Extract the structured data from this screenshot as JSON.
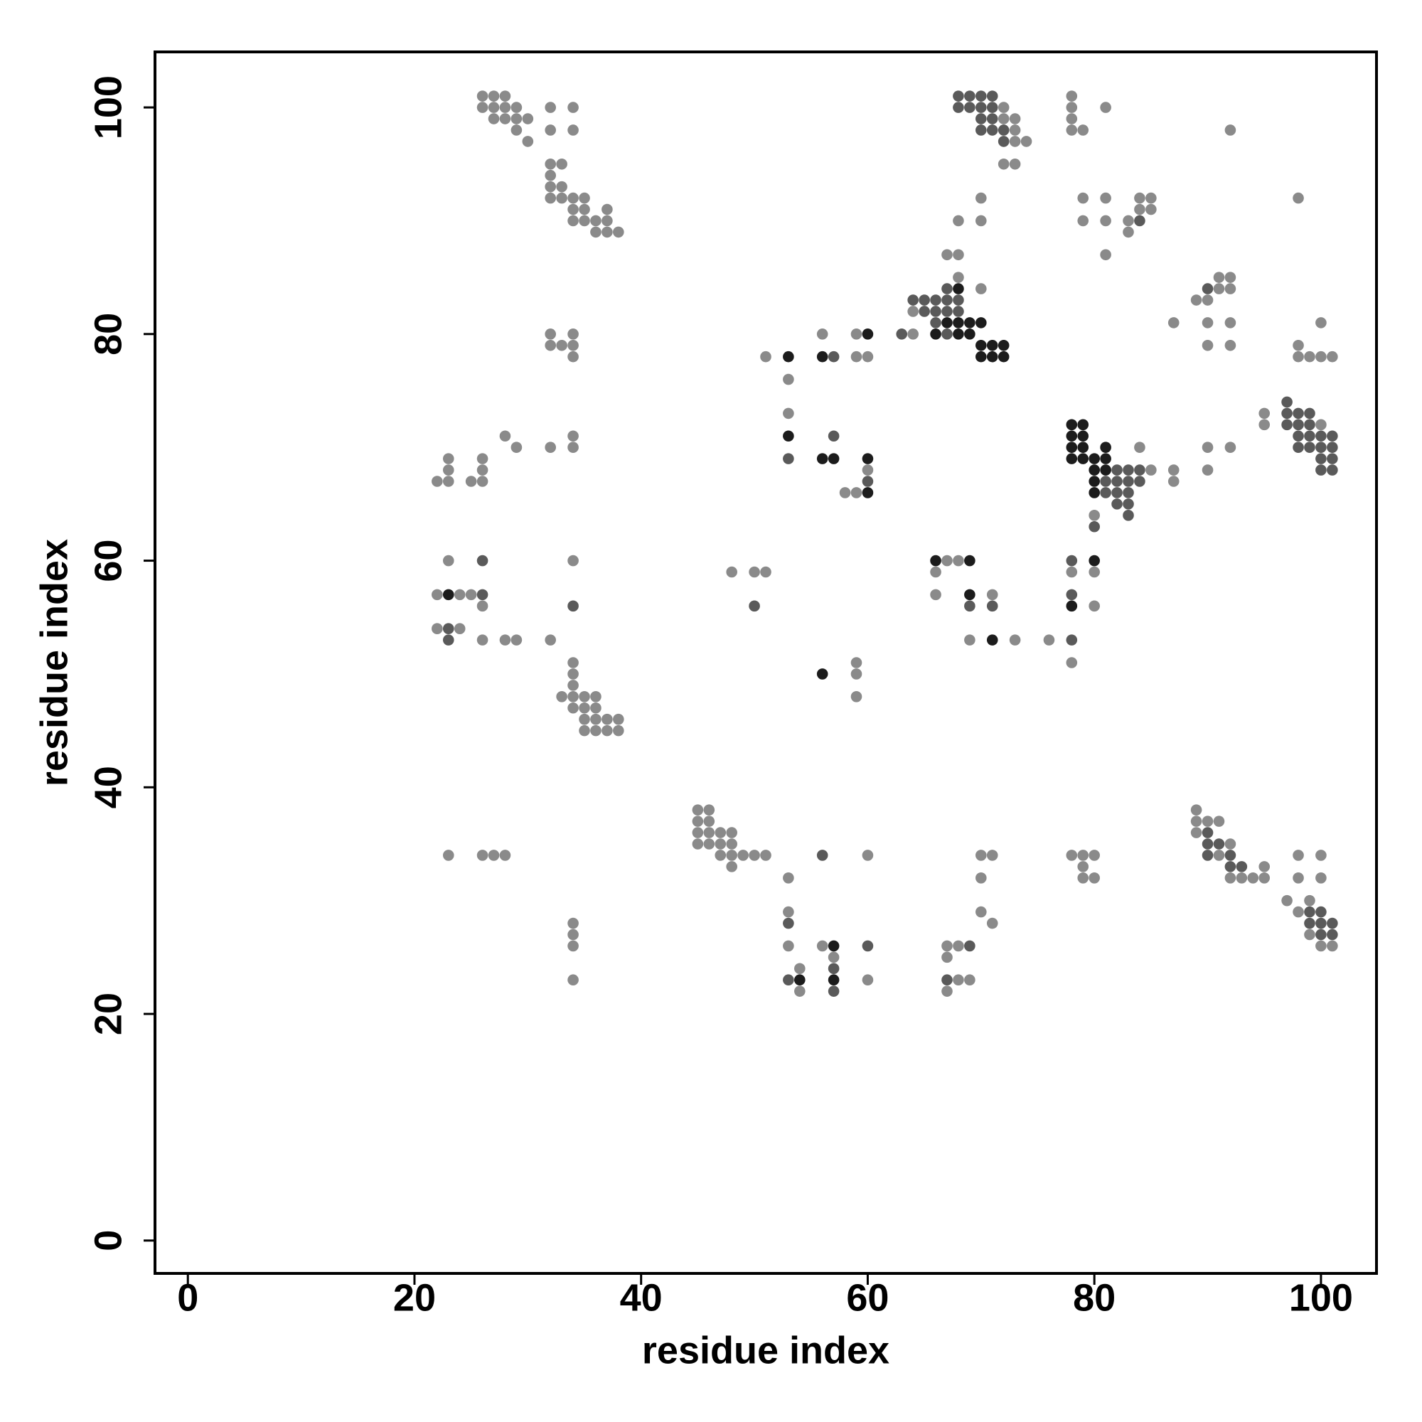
{
  "chart_data": {
    "type": "scatter",
    "xlabel": "residue index",
    "ylabel": "residue index",
    "xlim": [
      -2.9,
      104.9
    ],
    "ylim": [
      -2.9,
      104.9
    ],
    "xticks": [
      0,
      20,
      40,
      60,
      80,
      100
    ],
    "yticks": [
      0,
      20,
      40,
      60,
      80,
      100
    ],
    "grid": false,
    "series": [
      {
        "color": "#8a8a8a",
        "x": [
          26,
          27,
          28,
          26,
          27,
          28,
          29,
          32,
          34,
          27,
          28,
          29,
          30,
          29,
          32,
          34,
          30,
          32,
          33,
          32,
          32,
          33,
          32,
          33,
          34,
          35,
          34,
          35,
          37,
          34,
          35,
          36,
          37,
          36,
          37,
          38,
          72,
          72,
          73,
          73,
          73,
          74,
          72,
          73,
          70,
          68,
          70,
          67,
          68,
          68,
          70,
          64,
          64,
          78,
          78,
          78,
          78,
          79,
          81,
          92,
          98,
          79,
          79,
          81,
          81,
          81,
          83,
          83,
          84,
          84,
          85,
          85,
          89,
          90,
          90,
          90,
          91,
          91,
          92,
          92,
          92,
          92,
          87,
          98,
          98,
          99,
          100,
          100,
          101,
          32,
          32,
          33,
          34,
          34,
          34,
          28,
          29,
          32,
          34,
          34,
          22,
          23,
          23,
          23,
          25,
          26,
          26,
          26,
          23,
          34,
          22,
          24,
          25,
          26,
          22,
          24,
          26,
          28,
          29,
          32,
          34,
          34,
          34,
          33,
          34,
          35,
          36,
          34,
          35,
          36,
          35,
          36,
          37,
          38,
          35,
          36,
          37,
          38,
          23,
          26,
          27,
          28,
          34,
          34,
          34,
          34,
          51,
          53,
          53,
          56,
          58,
          59,
          59,
          59,
          60,
          60,
          48,
          50,
          51,
          59,
          59,
          59,
          45,
          45,
          45,
          45,
          46,
          46,
          46,
          46,
          47,
          47,
          47,
          48,
          48,
          48,
          48,
          49,
          50,
          51,
          53,
          53,
          53,
          54,
          54,
          56,
          57,
          60,
          60,
          66,
          66,
          67,
          68,
          69,
          71,
          73,
          76,
          78,
          78,
          80,
          80,
          67,
          67,
          67,
          68,
          68,
          69,
          70,
          70,
          70,
          71,
          71,
          78,
          79,
          79,
          79,
          80,
          80,
          80,
          84,
          85,
          87,
          87,
          90,
          90,
          92,
          95,
          95,
          100,
          89,
          89,
          89,
          90,
          91,
          91,
          92,
          92,
          93,
          94,
          95,
          95,
          97,
          98,
          98,
          98,
          99,
          99,
          100,
          100,
          100,
          101
        ],
        "y": [
          101,
          101,
          101,
          100,
          100,
          100,
          100,
          100,
          100,
          99,
          99,
          99,
          99,
          98,
          98,
          98,
          97,
          95,
          95,
          94,
          93,
          93,
          92,
          92,
          92,
          92,
          91,
          91,
          91,
          90,
          90,
          90,
          90,
          89,
          89,
          89,
          100,
          99,
          99,
          98,
          97,
          97,
          95,
          95,
          92,
          90,
          90,
          87,
          87,
          85,
          84,
          82,
          80,
          101,
          100,
          99,
          98,
          98,
          100,
          98,
          92,
          92,
          90,
          92,
          90,
          87,
          90,
          89,
          92,
          91,
          92,
          91,
          83,
          83,
          81,
          79,
          85,
          84,
          85,
          84,
          81,
          79,
          81,
          79,
          78,
          78,
          81,
          78,
          78,
          80,
          79,
          79,
          80,
          79,
          78,
          71,
          70,
          70,
          71,
          70,
          67,
          69,
          68,
          67,
          67,
          69,
          68,
          67,
          60,
          60,
          57,
          57,
          57,
          56,
          54,
          54,
          53,
          53,
          53,
          53,
          51,
          50,
          49,
          48,
          48,
          48,
          48,
          47,
          47,
          47,
          46,
          46,
          46,
          46,
          45,
          45,
          45,
          45,
          34,
          34,
          34,
          34,
          28,
          27,
          26,
          23,
          78,
          76,
          73,
          80,
          66,
          80,
          78,
          66,
          78,
          68,
          59,
          59,
          59,
          51,
          50,
          48,
          38,
          37,
          36,
          35,
          38,
          37,
          36,
          35,
          36,
          35,
          34,
          36,
          35,
          34,
          33,
          34,
          34,
          34,
          32,
          29,
          26,
          24,
          22,
          26,
          25,
          34,
          23,
          59,
          57,
          60,
          60,
          53,
          57,
          53,
          53,
          59,
          51,
          59,
          56,
          26,
          25,
          22,
          26,
          23,
          23,
          34,
          32,
          29,
          34,
          28,
          34,
          34,
          33,
          32,
          34,
          32,
          64,
          70,
          68,
          68,
          67,
          70,
          68,
          70,
          73,
          72,
          72,
          38,
          37,
          36,
          37,
          37,
          34,
          35,
          32,
          32,
          32,
          33,
          32,
          30,
          34,
          32,
          29,
          30,
          27,
          34,
          32,
          26,
          26
        ]
      },
      {
        "color": "#5a5a5a",
        "x": [
          68,
          69,
          70,
          71,
          68,
          69,
          70,
          71,
          70,
          71,
          70,
          71,
          72,
          72,
          64,
          65,
          66,
          67,
          68,
          65,
          66,
          67,
          68,
          67,
          66,
          63,
          67,
          84,
          90,
          26,
          23,
          23,
          26,
          34,
          50,
          57,
          57,
          53,
          60,
          56,
          53,
          53,
          57,
          60,
          57,
          67,
          69,
          78,
          78,
          78,
          80,
          71,
          69,
          82,
          82,
          82,
          82,
          83,
          83,
          83,
          83,
          83,
          84,
          84,
          81,
          81,
          97,
          97,
          97,
          98,
          98,
          98,
          99,
          99,
          99,
          98,
          99,
          100,
          100,
          100,
          100,
          101,
          101,
          101,
          101,
          99,
          99,
          100,
          100,
          100,
          101,
          101,
          90,
          90,
          90,
          91,
          92,
          92,
          93
        ],
        "y": [
          101,
          101,
          101,
          101,
          100,
          100,
          100,
          100,
          99,
          99,
          98,
          98,
          98,
          97,
          83,
          83,
          83,
          83,
          83,
          82,
          82,
          82,
          82,
          84,
          81,
          80,
          80,
          90,
          84,
          57,
          54,
          53,
          60,
          56,
          56,
          71,
          78,
          69,
          67,
          34,
          28,
          23,
          22,
          26,
          24,
          23,
          26,
          60,
          57,
          53,
          63,
          56,
          56,
          68,
          67,
          66,
          65,
          68,
          67,
          66,
          65,
          64,
          68,
          67,
          67,
          66,
          74,
          73,
          72,
          73,
          72,
          71,
          73,
          72,
          71,
          70,
          70,
          71,
          70,
          69,
          68,
          71,
          70,
          69,
          68,
          29,
          28,
          29,
          28,
          27,
          28,
          27,
          36,
          35,
          34,
          35,
          34,
          33,
          33
        ]
      },
      {
        "color": "#1c1c1c",
        "x": [
          53,
          53,
          56,
          56,
          57,
          60,
          60,
          60,
          66,
          69,
          69,
          71,
          56,
          57,
          54,
          57,
          23,
          66,
          67,
          68,
          68,
          69,
          70,
          69,
          70,
          70,
          71,
          72,
          71,
          72,
          78,
          79,
          78,
          79,
          78,
          79,
          78,
          79,
          80,
          81,
          81,
          80,
          81,
          80,
          80,
          78,
          80,
          68
        ],
        "y": [
          78,
          71,
          78,
          69,
          69,
          80,
          69,
          66,
          60,
          60,
          57,
          53,
          50,
          23,
          23,
          26,
          57,
          80,
          81,
          81,
          84,
          81,
          81,
          80,
          79,
          78,
          78,
          78,
          79,
          79,
          72,
          72,
          71,
          71,
          70,
          70,
          69,
          69,
          69,
          70,
          69,
          68,
          68,
          67,
          66,
          56,
          60,
          80
        ]
      }
    ]
  }
}
